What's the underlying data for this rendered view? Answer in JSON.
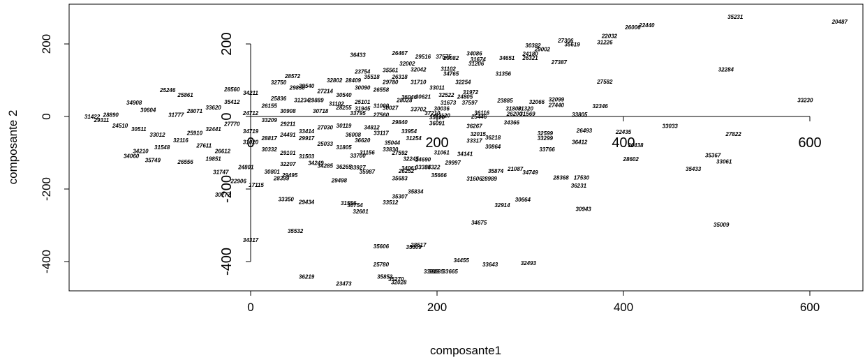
{
  "chart_data": {
    "type": "scatter",
    "title": "",
    "xlabel": "composante1",
    "ylabel": "composante 2",
    "xlim": [
      -195,
      650
    ],
    "ylim": [
      -490,
      295
    ],
    "x_ticks": [
      0,
      200,
      400,
      600
    ],
    "x_tick_labels": [
      "0",
      "200",
      "400",
      "600"
    ],
    "y_ticks": [
      -400,
      -200,
      0,
      200
    ],
    "y_tick_labels": [
      "-400",
      "-200",
      "0",
      "200"
    ],
    "grid": false,
    "legend": "none",
    "inner_axes": {
      "x_ticks": [
        0,
        200,
        400,
        600
      ],
      "x_tick_labels": [
        "0",
        "200",
        "400",
        "600"
      ],
      "y_ticks": [
        -400,
        -200,
        0,
        200
      ],
      "y_tick_labels": [
        "-400",
        "-200",
        "0",
        "200"
      ]
    },
    "points": [
      {
        "label": "35231",
        "x": 520,
        "y": 275
      },
      {
        "label": "20487",
        "x": 632,
        "y": 262
      },
      {
        "label": "22440",
        "x": 425,
        "y": 252
      },
      {
        "label": "26006",
        "x": 410,
        "y": 246
      },
      {
        "label": "22032",
        "x": 385,
        "y": 222
      },
      {
        "label": "31226",
        "x": 380,
        "y": 205
      },
      {
        "label": "27306",
        "x": 338,
        "y": 210
      },
      {
        "label": "35619",
        "x": 345,
        "y": 199
      },
      {
        "label": "30382",
        "x": 303,
        "y": 196
      },
      {
        "label": "29002",
        "x": 313,
        "y": 186
      },
      {
        "label": "24180",
        "x": 300,
        "y": 173
      },
      {
        "label": "26321",
        "x": 300,
        "y": 162
      },
      {
        "label": "27387",
        "x": 331,
        "y": 150
      },
      {
        "label": "34651",
        "x": 275,
        "y": 162
      },
      {
        "label": "34086",
        "x": 240,
        "y": 174
      },
      {
        "label": "31674",
        "x": 244,
        "y": 158
      },
      {
        "label": "31206",
        "x": 242,
        "y": 146
      },
      {
        "label": "31356",
        "x": 271,
        "y": 118
      },
      {
        "label": "32284",
        "x": 510,
        "y": 130
      },
      {
        "label": "27582",
        "x": 380,
        "y": 96
      },
      {
        "label": "33230",
        "x": 595,
        "y": 45
      },
      {
        "label": "36433",
        "x": 115,
        "y": 170
      },
      {
        "label": "26467",
        "x": 160,
        "y": 175
      },
      {
        "label": "29516",
        "x": 185,
        "y": 165
      },
      {
        "label": "37575",
        "x": 207,
        "y": 165
      },
      {
        "label": "32002",
        "x": 168,
        "y": 146
      },
      {
        "label": "28572",
        "x": 45,
        "y": 112
      },
      {
        "label": "23754",
        "x": 120,
        "y": 124
      },
      {
        "label": "34765",
        "x": 215,
        "y": 118
      },
      {
        "label": "29780",
        "x": 150,
        "y": 95
      },
      {
        "label": "32254",
        "x": 228,
        "y": 95
      },
      {
        "label": "26558",
        "x": 140,
        "y": 74
      },
      {
        "label": "31972",
        "x": 236,
        "y": 67
      },
      {
        "label": "23885",
        "x": 273,
        "y": 44
      },
      {
        "label": "32066",
        "x": 307,
        "y": 40
      },
      {
        "label": "32099",
        "x": 328,
        "y": 47
      },
      {
        "label": "27440",
        "x": 328,
        "y": 32
      },
      {
        "label": "32346",
        "x": 375,
        "y": 29
      },
      {
        "label": "33805",
        "x": 353,
        "y": 6
      },
      {
        "label": "25246",
        "x": -89,
        "y": 73
      },
      {
        "label": "34908",
        "x": -125,
        "y": 38
      },
      {
        "label": "31102",
        "x": 92,
        "y": 36
      },
      {
        "label": "30718",
        "x": 75,
        "y": 15
      },
      {
        "label": "36116",
        "x": 248,
        "y": 11
      },
      {
        "label": "31120",
        "x": 206,
        "y": 3
      },
      {
        "label": "34366",
        "x": 280,
        "y": -16
      },
      {
        "label": "36267",
        "x": 240,
        "y": -26
      },
      {
        "label": "33033",
        "x": 450,
        "y": -26
      },
      {
        "label": "26493",
        "x": 358,
        "y": -38
      },
      {
        "label": "22435",
        "x": 400,
        "y": -42
      },
      {
        "label": "27822",
        "x": 518,
        "y": -48
      },
      {
        "label": "32015",
        "x": 244,
        "y": -48
      },
      {
        "label": "36218",
        "x": 260,
        "y": -58
      },
      {
        "label": "33317",
        "x": 240,
        "y": -66
      },
      {
        "label": "32599",
        "x": 316,
        "y": -46
      },
      {
        "label": "33299",
        "x": 316,
        "y": -60
      },
      {
        "label": "36412",
        "x": 353,
        "y": -70
      },
      {
        "label": "36438",
        "x": 413,
        "y": -79
      },
      {
        "label": "30864",
        "x": 260,
        "y": -83
      },
      {
        "label": "33766",
        "x": 318,
        "y": -90
      },
      {
        "label": "35367",
        "x": 496,
        "y": -107
      },
      {
        "label": "33061",
        "x": 508,
        "y": -124
      },
      {
        "label": "28602",
        "x": 408,
        "y": -117
      },
      {
        "label": "35433",
        "x": 475,
        "y": -144
      },
      {
        "label": "31061",
        "x": 205,
        "y": -99
      },
      {
        "label": "34141",
        "x": 230,
        "y": -103
      },
      {
        "label": "29997",
        "x": 217,
        "y": -127
      },
      {
        "label": "34322",
        "x": 195,
        "y": -139
      },
      {
        "label": "33385",
        "x": 185,
        "y": -139
      },
      {
        "label": "34061",
        "x": 170,
        "y": -142
      },
      {
        "label": "26252",
        "x": 167,
        "y": -150
      },
      {
        "label": "35874",
        "x": 263,
        "y": -150
      },
      {
        "label": "21087",
        "x": 284,
        "y": -144
      },
      {
        "label": "34749",
        "x": 300,
        "y": -154
      },
      {
        "label": "35666",
        "x": 202,
        "y": -162
      },
      {
        "label": "35683",
        "x": 160,
        "y": -170
      },
      {
        "label": "31606",
        "x": 240,
        "y": -171
      },
      {
        "label": "28989",
        "x": 256,
        "y": -171
      },
      {
        "label": "28368",
        "x": 333,
        "y": -168
      },
      {
        "label": "17530",
        "x": 355,
        "y": -168
      },
      {
        "label": "36231",
        "x": 352,
        "y": -190
      },
      {
        "label": "29498",
        "x": 95,
        "y": -176
      },
      {
        "label": "22906",
        "x": -13,
        "y": -178
      },
      {
        "label": "17115",
        "x": 6,
        "y": -188
      },
      {
        "label": "30777",
        "x": -30,
        "y": -215
      },
      {
        "label": "31747",
        "x": -32,
        "y": -153
      },
      {
        "label": "24801",
        "x": -5,
        "y": -139
      },
      {
        "label": "30801",
        "x": 23,
        "y": -152
      },
      {
        "label": "29495",
        "x": 42,
        "y": -162
      },
      {
        "label": "28399",
        "x": 33,
        "y": -170
      },
      {
        "label": "26556",
        "x": -70,
        "y": -125
      },
      {
        "label": "35749",
        "x": -105,
        "y": -120
      },
      {
        "label": "34060",
        "x": -128,
        "y": -109
      },
      {
        "label": "19851",
        "x": -40,
        "y": -116
      },
      {
        "label": "33350",
        "x": 38,
        "y": -228
      },
      {
        "label": "29434",
        "x": 60,
        "y": -236
      },
      {
        "label": "31556",
        "x": 105,
        "y": -238
      },
      {
        "label": "30754",
        "x": 112,
        "y": -244
      },
      {
        "label": "33512",
        "x": 150,
        "y": -237
      },
      {
        "label": "32601",
        "x": 118,
        "y": -262
      },
      {
        "label": "35307",
        "x": 160,
        "y": -220
      },
      {
        "label": "35834",
        "x": 177,
        "y": -207
      },
      {
        "label": "30664",
        "x": 292,
        "y": -229
      },
      {
        "label": "32914",
        "x": 270,
        "y": -244
      },
      {
        "label": "30943",
        "x": 357,
        "y": -255
      },
      {
        "label": "34675",
        "x": 245,
        "y": -292
      },
      {
        "label": "35009",
        "x": 505,
        "y": -298
      },
      {
        "label": "35532",
        "x": 48,
        "y": -315
      },
      {
        "label": "34317",
        "x": 0,
        "y": -340
      },
      {
        "label": "35606",
        "x": 140,
        "y": -358
      },
      {
        "label": "35609",
        "x": 175,
        "y": -360
      },
      {
        "label": "28517",
        "x": 180,
        "y": -354
      },
      {
        "label": "34455",
        "x": 226,
        "y": -396
      },
      {
        "label": "25780",
        "x": 140,
        "y": -408
      },
      {
        "label": "33643",
        "x": 257,
        "y": -408
      },
      {
        "label": "32493",
        "x": 298,
        "y": -404
      },
      {
        "label": "33919",
        "x": 194,
        "y": -427
      },
      {
        "label": "33635",
        "x": 199,
        "y": -427
      },
      {
        "label": "33665",
        "x": 214,
        "y": -427
      },
      {
        "label": "36219",
        "x": 60,
        "y": -441
      },
      {
        "label": "35853",
        "x": 144,
        "y": -441
      },
      {
        "label": "35270",
        "x": 156,
        "y": -448
      },
      {
        "label": "32028",
        "x": 159,
        "y": -457
      },
      {
        "label": "23473",
        "x": 100,
        "y": -461
      },
      {
        "label": "32042",
        "x": 180,
        "y": 130
      },
      {
        "label": "29082",
        "x": 215,
        "y": 162
      },
      {
        "label": "31102",
        "x": 212,
        "y": 132
      },
      {
        "label": "35561",
        "x": 150,
        "y": 128
      },
      {
        "label": "36046",
        "x": 170,
        "y": 54
      },
      {
        "label": "28028",
        "x": 165,
        "y": 45
      },
      {
        "label": "31673",
        "x": 212,
        "y": 38
      },
      {
        "label": "37597",
        "x": 235,
        "y": 38
      },
      {
        "label": "30036",
        "x": 205,
        "y": 22
      },
      {
        "label": "37210",
        "x": 195,
        "y": 10
      },
      {
        "label": "25446",
        "x": 245,
        "y": 0
      },
      {
        "label": "31945",
        "x": 120,
        "y": 22
      },
      {
        "label": "30027",
        "x": 150,
        "y": 24
      },
      {
        "label": "33795",
        "x": 115,
        "y": 10
      },
      {
        "label": "35120",
        "x": 200,
        "y": -2
      },
      {
        "label": "31800",
        "x": 282,
        "y": 22
      },
      {
        "label": "31320",
        "x": 295,
        "y": 22
      },
      {
        "label": "31569",
        "x": 297,
        "y": 8
      },
      {
        "label": "26200",
        "x": 283,
        "y": 8
      },
      {
        "label": "36091",
        "x": 200,
        "y": -18
      },
      {
        "label": "33954",
        "x": 170,
        "y": -40
      },
      {
        "label": "31254",
        "x": 175,
        "y": -60
      },
      {
        "label": "35044",
        "x": 152,
        "y": -72
      },
      {
        "label": "33830",
        "x": 150,
        "y": -90
      },
      {
        "label": "27592",
        "x": 160,
        "y": -100
      },
      {
        "label": "33700",
        "x": 115,
        "y": -108
      },
      {
        "label": "31156",
        "x": 125,
        "y": -99
      },
      {
        "label": "24690",
        "x": 185,
        "y": -118
      },
      {
        "label": "32245",
        "x": 172,
        "y": -116
      },
      {
        "label": "35987",
        "x": 125,
        "y": -152
      },
      {
        "label": "33927",
        "x": 115,
        "y": -140
      },
      {
        "label": "36265",
        "x": 100,
        "y": -138
      },
      {
        "label": "34249",
        "x": 70,
        "y": -128
      },
      {
        "label": "34285",
        "x": 80,
        "y": -136
      },
      {
        "label": "32207",
        "x": 40,
        "y": -131
      },
      {
        "label": "29889",
        "x": 70,
        "y": 45
      },
      {
        "label": "31234",
        "x": 55,
        "y": 45
      },
      {
        "label": "25836",
        "x": 30,
        "y": 50
      },
      {
        "label": "32750",
        "x": 30,
        "y": 94
      },
      {
        "label": "29830",
        "x": 50,
        "y": 80
      },
      {
        "label": "28560",
        "x": -20,
        "y": 75
      },
      {
        "label": "25861",
        "x": -70,
        "y": 60
      },
      {
        "label": "34210",
        "x": -118,
        "y": -95
      },
      {
        "label": "31548",
        "x": -95,
        "y": -85
      },
      {
        "label": "30604",
        "x": -110,
        "y": 18
      },
      {
        "label": "28890",
        "x": -150,
        "y": 5
      },
      {
        "label": "31422",
        "x": -170,
        "y": 0
      },
      {
        "label": "29311",
        "x": -160,
        "y": -10
      },
      {
        "label": "24510",
        "x": -140,
        "y": -25
      },
      {
        "label": "30511",
        "x": -120,
        "y": -35
      },
      {
        "label": "33012",
        "x": -100,
        "y": -50
      },
      {
        "label": "32116",
        "x": -75,
        "y": -65
      },
      {
        "label": "27611",
        "x": -50,
        "y": -80
      },
      {
        "label": "26612",
        "x": -30,
        "y": -95
      },
      {
        "label": "31020",
        "x": 0,
        "y": -70
      },
      {
        "label": "28817",
        "x": 20,
        "y": -60
      },
      {
        "label": "24491",
        "x": 40,
        "y": -50
      },
      {
        "label": "33414",
        "x": 60,
        "y": -40
      },
      {
        "label": "27030",
        "x": 80,
        "y": -30
      },
      {
        "label": "30119",
        "x": 100,
        "y": -25
      },
      {
        "label": "29917",
        "x": 60,
        "y": -60
      },
      {
        "label": "25033",
        "x": 80,
        "y": -75
      },
      {
        "label": "31805",
        "x": 100,
        "y": -85
      },
      {
        "label": "36620",
        "x": 120,
        "y": -65
      },
      {
        "label": "33117",
        "x": 140,
        "y": -45
      },
      {
        "label": "30540",
        "x": 100,
        "y": 60
      },
      {
        "label": "27214",
        "x": 80,
        "y": 70
      },
      {
        "label": "29540",
        "x": 60,
        "y": 85
      },
      {
        "label": "34211",
        "x": 0,
        "y": 65
      },
      {
        "label": "35412",
        "x": -20,
        "y": 40
      },
      {
        "label": "33620",
        "x": -40,
        "y": 25
      },
      {
        "label": "28071",
        "x": -60,
        "y": 15
      },
      {
        "label": "31777",
        "x": -80,
        "y": 5
      },
      {
        "label": "26155",
        "x": 20,
        "y": 30
      },
      {
        "label": "30908",
        "x": 40,
        "y": 15
      },
      {
        "label": "24712",
        "x": 0,
        "y": 10
      },
      {
        "label": "33209",
        "x": 20,
        "y": -10
      },
      {
        "label": "29211",
        "x": 40,
        "y": -20
      },
      {
        "label": "27770",
        "x": -20,
        "y": -20
      },
      {
        "label": "32441",
        "x": -40,
        "y": -35
      },
      {
        "label": "25910",
        "x": -60,
        "y": -45
      },
      {
        "label": "34719",
        "x": 0,
        "y": -40
      },
      {
        "label": "30332",
        "x": 20,
        "y": -90
      },
      {
        "label": "29101",
        "x": 40,
        "y": -100
      },
      {
        "label": "31503",
        "x": 60,
        "y": -110
      },
      {
        "label": "35518",
        "x": 130,
        "y": 110
      },
      {
        "label": "28409",
        "x": 110,
        "y": 100
      },
      {
        "label": "32802",
        "x": 90,
        "y": 100
      },
      {
        "label": "26318",
        "x": 160,
        "y": 110
      },
      {
        "label": "31710",
        "x": 180,
        "y": 95
      },
      {
        "label": "30090",
        "x": 120,
        "y": 80
      },
      {
        "label": "33011",
        "x": 200,
        "y": 80
      },
      {
        "label": "27560",
        "x": 140,
        "y": 5
      },
      {
        "label": "29840",
        "x": 160,
        "y": -15
      },
      {
        "label": "34812",
        "x": 130,
        "y": -30
      },
      {
        "label": "36008",
        "x": 110,
        "y": -50
      },
      {
        "label": "25101",
        "x": 120,
        "y": 40
      },
      {
        "label": "31000",
        "x": 140,
        "y": 30
      },
      {
        "label": "28255",
        "x": 100,
        "y": 25
      },
      {
        "label": "33702",
        "x": 180,
        "y": 20
      },
      {
        "label": "30621",
        "x": 185,
        "y": 55
      },
      {
        "label": "32522",
        "x": 210,
        "y": 60
      },
      {
        "label": "24805",
        "x": 230,
        "y": 55
      }
    ]
  }
}
